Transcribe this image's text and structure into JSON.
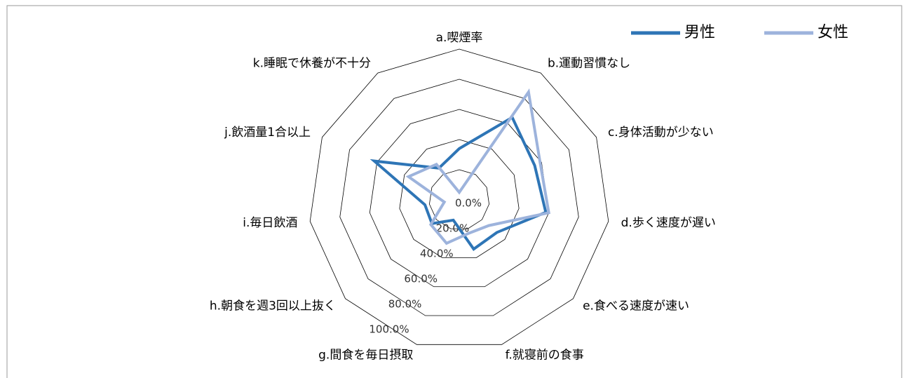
{
  "chart_data": {
    "type": "radar",
    "categories": [
      "a.喫煙率",
      "b.運動習慣なし",
      "c.身体活動が少ない",
      "d.歩く速度が遅い",
      "e.食べる速度が速い",
      "f.就寝前の食事",
      "g.間食を毎日摂取",
      "h.朝食を週3回以上抜く",
      "i.毎日飲酒",
      "j.飲酒量1合以上",
      "k.睡眠で休養が不十分"
    ],
    "series": [
      {
        "name": "男性",
        "color": "#2e75b6",
        "values": [
          34,
          65,
          55,
          58,
          33,
          34,
          14,
          24,
          23,
          62,
          25
        ]
      },
      {
        "name": "女性",
        "color": "#9db3dc",
        "values": [
          5,
          85,
          59,
          60,
          26,
          23,
          30,
          25,
          10,
          37,
          28
        ]
      }
    ],
    "ylim": [
      0,
      100
    ],
    "yticks": [
      {
        "value": 0,
        "label": "0.0%"
      },
      {
        "value": 20,
        "label": "20.0%"
      },
      {
        "value": 40,
        "label": "40.0%"
      },
      {
        "value": 60,
        "label": "60.0%"
      },
      {
        "value": 80,
        "label": "80.0%"
      },
      {
        "value": 100,
        "label": "100.0%"
      }
    ],
    "legend": "top-right",
    "grid": true
  }
}
